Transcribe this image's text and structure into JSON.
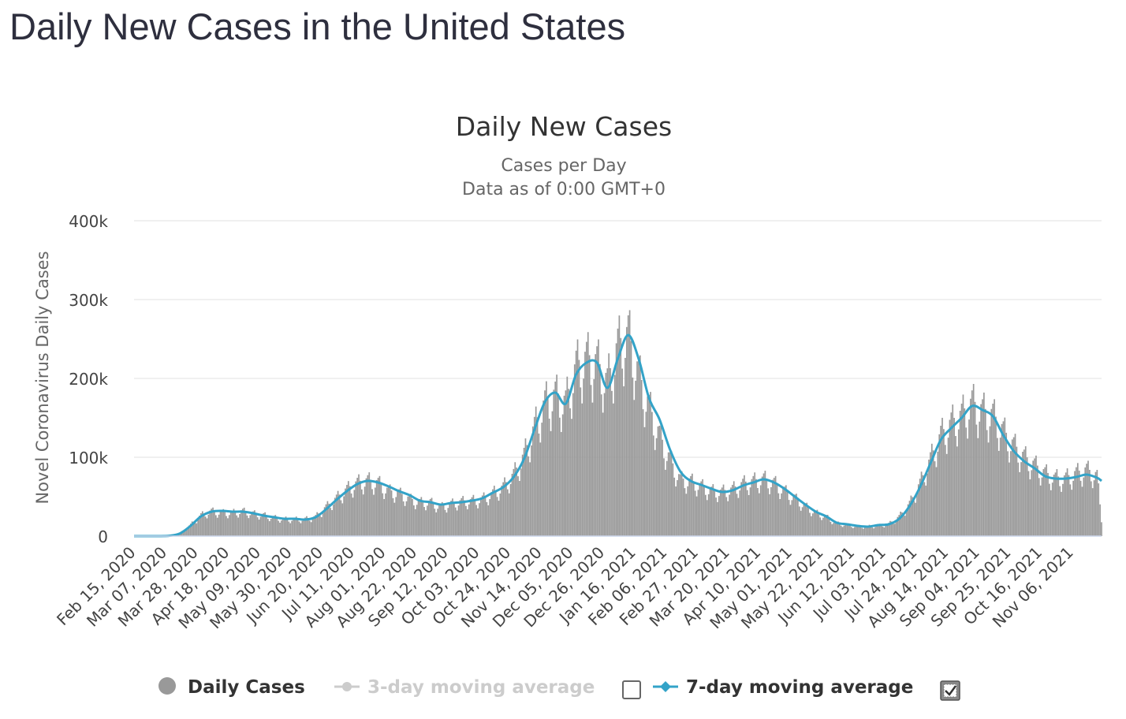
{
  "page": {
    "title": "Daily New Cases in the United States"
  },
  "chart_data": {
    "type": "bar",
    "title": "Daily New Cases",
    "subtitle": [
      "Cases per Day",
      "Data as of 0:00 GMT+0"
    ],
    "ylabel": "Novel Coronavirus Daily Cases",
    "xlabel": "",
    "ylim": [
      0,
      400000
    ],
    "y_ticks": [
      0,
      100000,
      200000,
      300000,
      400000
    ],
    "y_tick_labels": [
      "0",
      "100k",
      "200k",
      "300k",
      "400k"
    ],
    "x_range": [
      "2020-02-15",
      "2021-11-26"
    ],
    "x_tick_labels": [
      "Feb 15, 2020",
      "Mar 07, 2020",
      "Mar 28, 2020",
      "Apr 18, 2020",
      "May 09, 2020",
      "May 30, 2020",
      "Jun 20, 2020",
      "Jul 11, 2020",
      "Aug 01, 2020",
      "Aug 22, 2020",
      "Sep 12, 2020",
      "Oct 03, 2020",
      "Oct 24, 2020",
      "Nov 14, 2020",
      "Dec 05, 2020",
      "Dec 26, 2020",
      "Jan 16, 2021",
      "Feb 06, 2021",
      "Feb 27, 2021",
      "Mar 20, 2021",
      "Apr 10, 2021",
      "May 01, 2021",
      "May 22, 2021",
      "Jun 12, 2021",
      "Jul 03, 2021",
      "Jul 24, 2021",
      "Aug 14, 2021",
      "Sep 04, 2021",
      "Sep 25, 2021",
      "Oct 16, 2021",
      "Nov 06, 2021"
    ],
    "grid": true,
    "legend_position": "bottom",
    "colors": {
      "bars": "#999999",
      "line": "#33a3c8",
      "grid": "#e6e6e6",
      "axis": "#ccd6eb",
      "text": "#444444"
    },
    "series": [
      {
        "name": "Daily Cases",
        "type": "bar",
        "values": [
          [
            "2020-02-15",
            0
          ],
          [
            "2020-03-01",
            30
          ],
          [
            "2020-03-10",
            600
          ],
          [
            "2020-03-17",
            4000
          ],
          [
            "2020-03-24",
            14000
          ],
          [
            "2020-03-31",
            26000
          ],
          [
            "2020-04-07",
            31000
          ],
          [
            "2020-04-14",
            29000
          ],
          [
            "2020-04-21",
            29000
          ],
          [
            "2020-04-28",
            31000
          ],
          [
            "2020-05-05",
            28000
          ],
          [
            "2020-05-12",
            26000
          ],
          [
            "2020-05-19",
            23000
          ],
          [
            "2020-05-26",
            21000
          ],
          [
            "2020-06-02",
            21000
          ],
          [
            "2020-06-09",
            21000
          ],
          [
            "2020-06-16",
            24000
          ],
          [
            "2020-06-23",
            36000
          ],
          [
            "2020-06-30",
            47000
          ],
          [
            "2020-07-07",
            58000
          ],
          [
            "2020-07-14",
            66000
          ],
          [
            "2020-07-21",
            69000
          ],
          [
            "2020-07-28",
            66000
          ],
          [
            "2020-08-04",
            56000
          ],
          [
            "2020-08-11",
            53000
          ],
          [
            "2020-08-18",
            46000
          ],
          [
            "2020-08-25",
            42000
          ],
          [
            "2020-09-01",
            42000
          ],
          [
            "2020-09-08",
            36000
          ],
          [
            "2020-09-15",
            40000
          ],
          [
            "2020-09-22",
            43000
          ],
          [
            "2020-09-29",
            44000
          ],
          [
            "2020-10-06",
            46000
          ],
          [
            "2020-10-13",
            53000
          ],
          [
            "2020-10-20",
            61000
          ],
          [
            "2020-10-27",
            76000
          ],
          [
            "2020-11-03",
            100000
          ],
          [
            "2020-11-10",
            135000
          ],
          [
            "2020-11-17",
            165000
          ],
          [
            "2020-11-24",
            175000
          ],
          [
            "2020-12-01",
            165000
          ],
          [
            "2020-12-08",
            210000
          ],
          [
            "2020-12-15",
            220000
          ],
          [
            "2020-12-22",
            215000
          ],
          [
            "2020-12-29",
            190000
          ],
          [
            "2021-01-05",
            235000
          ],
          [
            "2021-01-12",
            250000
          ],
          [
            "2021-01-19",
            200000
          ],
          [
            "2021-01-26",
            160000
          ],
          [
            "2021-02-02",
            125000
          ],
          [
            "2021-02-09",
            95000
          ],
          [
            "2021-02-16",
            70000
          ],
          [
            "2021-02-23",
            68000
          ],
          [
            "2021-03-02",
            62000
          ],
          [
            "2021-03-09",
            56000
          ],
          [
            "2021-03-16",
            55000
          ],
          [
            "2021-03-23",
            58000
          ],
          [
            "2021-03-30",
            65000
          ],
          [
            "2021-04-06",
            68000
          ],
          [
            "2021-04-13",
            71000
          ],
          [
            "2021-04-20",
            66000
          ],
          [
            "2021-04-27",
            56000
          ],
          [
            "2021-05-04",
            47000
          ],
          [
            "2021-05-11",
            37000
          ],
          [
            "2021-05-18",
            29000
          ],
          [
            "2021-05-25",
            24000
          ],
          [
            "2021-06-01",
            16000
          ],
          [
            "2021-06-08",
            14000
          ],
          [
            "2021-06-15",
            12000
          ],
          [
            "2021-06-22",
            12000
          ],
          [
            "2021-06-29",
            13000
          ],
          [
            "2021-07-06",
            15000
          ],
          [
            "2021-07-13",
            24000
          ],
          [
            "2021-07-20",
            40000
          ],
          [
            "2021-07-27",
            65000
          ],
          [
            "2021-08-03",
            95000
          ],
          [
            "2021-08-10",
            125000
          ],
          [
            "2021-08-17",
            140000
          ],
          [
            "2021-08-24",
            150000
          ],
          [
            "2021-08-31",
            165000
          ],
          [
            "2021-09-07",
            155000
          ],
          [
            "2021-09-14",
            150000
          ],
          [
            "2021-09-21",
            130000
          ],
          [
            "2021-09-28",
            112000
          ],
          [
            "2021-10-05",
            98000
          ],
          [
            "2021-10-12",
            88000
          ],
          [
            "2021-10-19",
            78000
          ],
          [
            "2021-10-26",
            72000
          ],
          [
            "2021-11-02",
            72000
          ],
          [
            "2021-11-09",
            78000
          ],
          [
            "2021-11-16",
            82000
          ],
          [
            "2021-11-23",
            75000
          ],
          [
            "2021-11-26",
            20000
          ]
        ]
      },
      {
        "name": "3-day moving average",
        "type": "line",
        "visible": false,
        "values": []
      },
      {
        "name": "7-day moving average",
        "type": "line",
        "visible": true,
        "values": [
          [
            "2020-02-15",
            0
          ],
          [
            "2020-03-01",
            30
          ],
          [
            "2020-03-10",
            500
          ],
          [
            "2020-03-17",
            3500
          ],
          [
            "2020-03-24",
            13000
          ],
          [
            "2020-03-31",
            25000
          ],
          [
            "2020-04-07",
            31000
          ],
          [
            "2020-04-14",
            32000
          ],
          [
            "2020-04-21",
            31000
          ],
          [
            "2020-04-28",
            31000
          ],
          [
            "2020-05-05",
            29000
          ],
          [
            "2020-05-12",
            26000
          ],
          [
            "2020-05-19",
            24000
          ],
          [
            "2020-05-26",
            22000
          ],
          [
            "2020-06-02",
            22000
          ],
          [
            "2020-06-09",
            21000
          ],
          [
            "2020-06-16",
            24000
          ],
          [
            "2020-06-23",
            34000
          ],
          [
            "2020-06-30",
            46000
          ],
          [
            "2020-07-07",
            57000
          ],
          [
            "2020-07-14",
            66000
          ],
          [
            "2020-07-21",
            70000
          ],
          [
            "2020-07-28",
            68000
          ],
          [
            "2020-08-04",
            63000
          ],
          [
            "2020-08-11",
            57000
          ],
          [
            "2020-08-18",
            52000
          ],
          [
            "2020-08-25",
            45000
          ],
          [
            "2020-09-01",
            43000
          ],
          [
            "2020-09-08",
            40000
          ],
          [
            "2020-09-15",
            42000
          ],
          [
            "2020-09-22",
            43000
          ],
          [
            "2020-09-29",
            45000
          ],
          [
            "2020-10-06",
            48000
          ],
          [
            "2020-10-13",
            55000
          ],
          [
            "2020-10-20",
            62000
          ],
          [
            "2020-10-27",
            75000
          ],
          [
            "2020-11-03",
            98000
          ],
          [
            "2020-11-10",
            135000
          ],
          [
            "2020-11-17",
            170000
          ],
          [
            "2020-11-24",
            182000
          ],
          [
            "2020-12-01",
            168000
          ],
          [
            "2020-12-08",
            205000
          ],
          [
            "2020-12-15",
            220000
          ],
          [
            "2020-12-22",
            220000
          ],
          [
            "2020-12-29",
            188000
          ],
          [
            "2021-01-05",
            225000
          ],
          [
            "2021-01-12",
            255000
          ],
          [
            "2021-01-19",
            225000
          ],
          [
            "2021-01-26",
            175000
          ],
          [
            "2021-02-02",
            148000
          ],
          [
            "2021-02-09",
            110000
          ],
          [
            "2021-02-16",
            82000
          ],
          [
            "2021-02-23",
            70000
          ],
          [
            "2021-03-02",
            65000
          ],
          [
            "2021-03-09",
            60000
          ],
          [
            "2021-03-16",
            56000
          ],
          [
            "2021-03-23",
            58000
          ],
          [
            "2021-03-30",
            64000
          ],
          [
            "2021-04-06",
            68000
          ],
          [
            "2021-04-13",
            72000
          ],
          [
            "2021-04-20",
            68000
          ],
          [
            "2021-04-27",
            60000
          ],
          [
            "2021-05-04",
            50000
          ],
          [
            "2021-05-11",
            40000
          ],
          [
            "2021-05-18",
            31000
          ],
          [
            "2021-05-25",
            25000
          ],
          [
            "2021-06-01",
            17000
          ],
          [
            "2021-06-08",
            15000
          ],
          [
            "2021-06-15",
            13000
          ],
          [
            "2021-06-22",
            12000
          ],
          [
            "2021-06-29",
            14000
          ],
          [
            "2021-07-06",
            15000
          ],
          [
            "2021-07-13",
            22000
          ],
          [
            "2021-07-20",
            38000
          ],
          [
            "2021-07-27",
            62000
          ],
          [
            "2021-08-03",
            92000
          ],
          [
            "2021-08-10",
            122000
          ],
          [
            "2021-08-17",
            137000
          ],
          [
            "2021-08-24",
            150000
          ],
          [
            "2021-08-31",
            165000
          ],
          [
            "2021-09-07",
            160000
          ],
          [
            "2021-09-14",
            152000
          ],
          [
            "2021-09-21",
            128000
          ],
          [
            "2021-09-28",
            108000
          ],
          [
            "2021-10-05",
            95000
          ],
          [
            "2021-10-12",
            86000
          ],
          [
            "2021-10-19",
            76000
          ],
          [
            "2021-10-26",
            73000
          ],
          [
            "2021-11-02",
            73000
          ],
          [
            "2021-11-09",
            75000
          ],
          [
            "2021-11-16",
            78000
          ],
          [
            "2021-11-23",
            74000
          ],
          [
            "2021-11-26",
            70000
          ]
        ]
      }
    ]
  }
}
